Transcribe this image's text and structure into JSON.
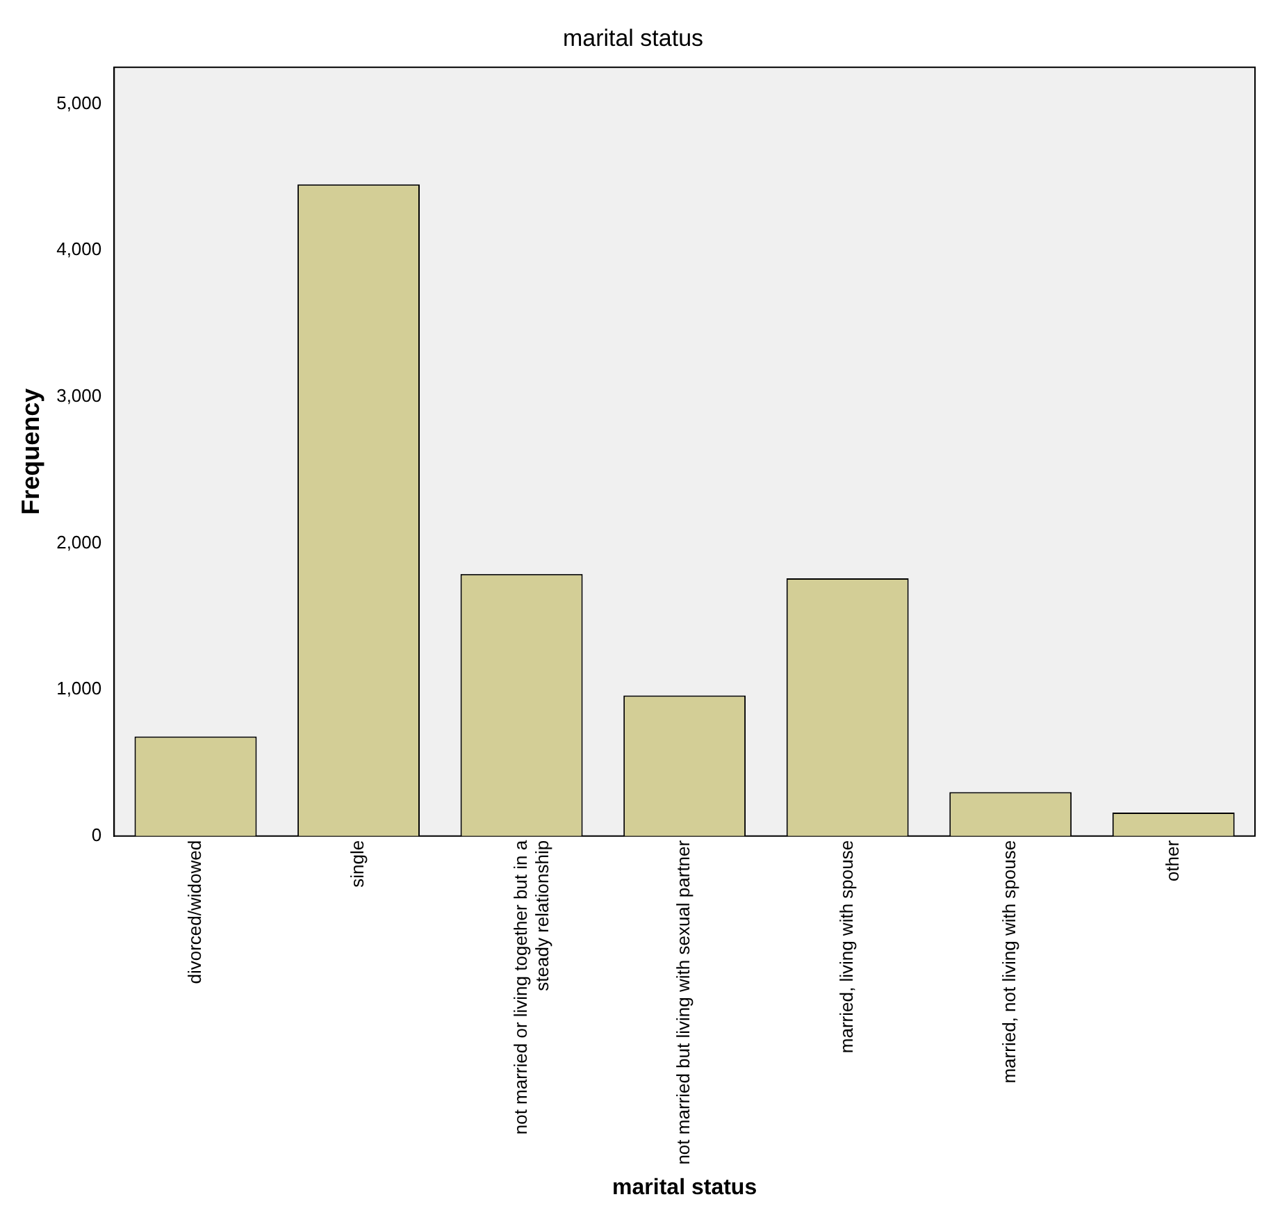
{
  "chart_data": {
    "type": "bar",
    "title": "marital status",
    "xlabel": "marital status",
    "ylabel": "Frequency",
    "categories": [
      "divorced/widowed",
      "single",
      "not married or living together but in a steady relationship",
      "not married but living with sexual partner",
      "married, living with spouse",
      "married, not living with spouse",
      "other"
    ],
    "values": [
      680,
      4450,
      1790,
      960,
      1760,
      300,
      160
    ],
    "color": "#d3ce96",
    "ylim": [
      0,
      5250
    ],
    "yticks": [
      {
        "value": 0,
        "label": "0"
      },
      {
        "value": 1000,
        "label": "1,000"
      },
      {
        "value": 2000,
        "label": "2,000"
      },
      {
        "value": 3000,
        "label": "3,000"
      },
      {
        "value": 4000,
        "label": "4,000"
      },
      {
        "value": 5000,
        "label": "5,000"
      }
    ],
    "grid": false,
    "legend": false
  }
}
